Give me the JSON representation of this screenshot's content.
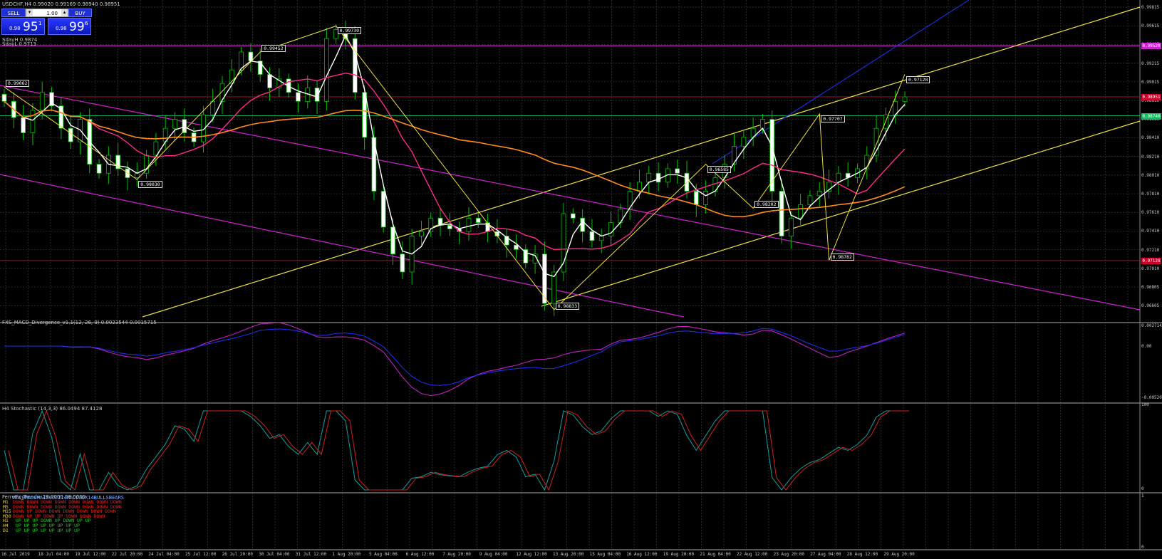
{
  "window": {
    "title": "USDCHF,H4  0.99020 0.99169 0.98940 0.98951"
  },
  "trade_panel": {
    "sell_label": "SELL",
    "buy_label": "BUY",
    "lot_value": "1.00",
    "sell_price_prefix": "0.98",
    "sell_price_big": "95",
    "sell_price_sup": "1",
    "buy_price_prefix": "0.98",
    "buy_price_big": "99",
    "buy_price_sup": "6"
  },
  "info_lines": [
    "SdayH 0.9874",
    "SdayL 0.9713"
  ],
  "price_axis_ticks": [
    "0.99815",
    "0.99615",
    "0.99415",
    "0.99215",
    "0.99015",
    "0.98810",
    "0.98610",
    "0.98410",
    "0.98210",
    "0.98010",
    "0.97810",
    "0.97610",
    "0.97410",
    "0.97210",
    "0.97010",
    "0.96805",
    "0.96605"
  ],
  "price_labels": [
    {
      "text": "0.99520",
      "color": "#d020d0"
    },
    {
      "text": "0.98951",
      "color": "#c8002a"
    },
    {
      "text": "0.98740",
      "color": "#10c060"
    },
    {
      "text": "0.97128",
      "color": "#c8002a"
    }
  ],
  "point_labels": [
    "0.99062",
    "0.98030",
    "0.99452",
    "0.99739",
    "0.98833",
    "0.96585",
    "0.98202",
    "0.97707",
    "0.98762",
    "0.97128"
  ],
  "indicators": {
    "macd": {
      "title": "FXS_MACD_Divergence_v1.1(12, 26, 9) 0.0023544 0.0015715",
      "ticks": [
        "0.0027143",
        "0.00",
        "-0.0052030"
      ]
    },
    "stochastic": {
      "title": "H4 Stochastic (14,3,3) 86.0494 87.4128",
      "ticks": [
        "100",
        "0"
      ]
    },
    "trend": {
      "title": "FerruFx_Trend+ 28.0000 28.0000",
      "ticks": [
        "1",
        "0"
      ],
      "header": "MA20MA50MA100CCI14MACDADX14BULLSBEARS",
      "rows": [
        {
          "tf": "M1",
          "values": "DOWN DOWN DOWN DOWN DOWN DOWN DOWN DOWN",
          "color": "#e02020"
        },
        {
          "tf": "M5",
          "values": "DOWN DOWN DOWN DOWN DOWN DOWN DOWN DOWN",
          "color": "#e02020"
        },
        {
          "tf": "M15",
          "values": "DOWN  UP  DOWN DOWN DOWN DOWN DOWN DOWN",
          "color": "#e02020"
        },
        {
          "tf": "M30",
          "values": "DOWN  UP   UP  DOWN  UP  DOWN DOWN DOWN",
          "color": "#e02020"
        },
        {
          "tf": "H1",
          "values": " UP   UP   UP  DOWN  UP  DOWN  UP   UP",
          "color": "#20d020"
        },
        {
          "tf": "H4",
          "values": " UP   UP   UP   UP   UP   UP   UP   UP",
          "color": "#20d020"
        },
        {
          "tf": "D1",
          "values": " UP   UP   UP   UP   UP   UP   UP   UP",
          "color": "#20d020"
        }
      ]
    }
  },
  "date_ticks": [
    "16 Jul 2019",
    "18 Jul 04:00",
    "19 Jul 12:00",
    "22 Jul 20:00",
    "24 Jul 04:00",
    "25 Jul 12:00",
    "26 Jul 20:00",
    "30 Jul 04:00",
    "31 Jul 12:00",
    "1 Aug 20:00",
    "5 Aug 04:00",
    "6 Aug 12:00",
    "7 Aug 20:00",
    "9 Aug 04:00",
    "12 Aug 12:00",
    "13 Aug 20:00",
    "15 Aug 04:00",
    "16 Aug 12:00",
    "19 Aug 20:00",
    "21 Aug 04:00",
    "22 Aug 12:00",
    "23 Aug 20:00",
    "27 Aug 04:00",
    "28 Aug 12:00",
    "29 Aug 20:00"
  ],
  "colors": {
    "background": "#000000",
    "grid": "#3a3a3a",
    "bull_candle": "#000000",
    "bear_candle": "#ffffff",
    "candle_wick": "#00c000",
    "ma_fast": "#ffffff",
    "ma_mid": "#ff2a8a",
    "ma_slow": "#ff8c1a",
    "channel_yellow": "#f0e040",
    "channel_magenta": "#d020d0",
    "blue_line": "#2030ff"
  },
  "chart_data": {
    "type": "candlestick",
    "ylim": [
      0.965,
      0.9995
    ],
    "close_prices": [
      0.989,
      0.9872,
      0.9855,
      0.988,
      0.99,
      0.9885,
      0.986,
      0.9845,
      0.987,
      0.982,
      0.981,
      0.983,
      0.9815,
      0.9805,
      0.981,
      0.983,
      0.9845,
      0.986,
      0.987,
      0.9855,
      0.9845,
      0.9875,
      0.989,
      0.991,
      0.9925,
      0.9945,
      0.9935,
      0.992,
      0.9905,
      0.9915,
      0.99,
      0.989,
      0.9905,
      0.989,
      0.996,
      0.997,
      0.996,
      0.99,
      0.985,
      0.979,
      0.975,
      0.972,
      0.97,
      0.974,
      0.9745,
      0.976,
      0.9752,
      0.9748,
      0.9745,
      0.976,
      0.9755,
      0.9745,
      0.974,
      0.973,
      0.9725,
      0.971,
      0.972,
      0.9665,
      0.97,
      0.9765,
      0.976,
      0.9745,
      0.9735,
      0.974,
      0.9755,
      0.977,
      0.979,
      0.98,
      0.981,
      0.98,
      0.9815,
      0.981,
      0.979,
      0.9775,
      0.979,
      0.9805,
      0.982,
      0.984,
      0.985,
      0.986,
      0.987,
      0.979,
      0.974,
      0.976,
      0.9775,
      0.9785,
      0.979,
      0.98,
      0.981,
      0.9805,
      0.9815,
      0.983,
      0.986,
      0.9875,
      0.989,
      0.9895
    ]
  }
}
